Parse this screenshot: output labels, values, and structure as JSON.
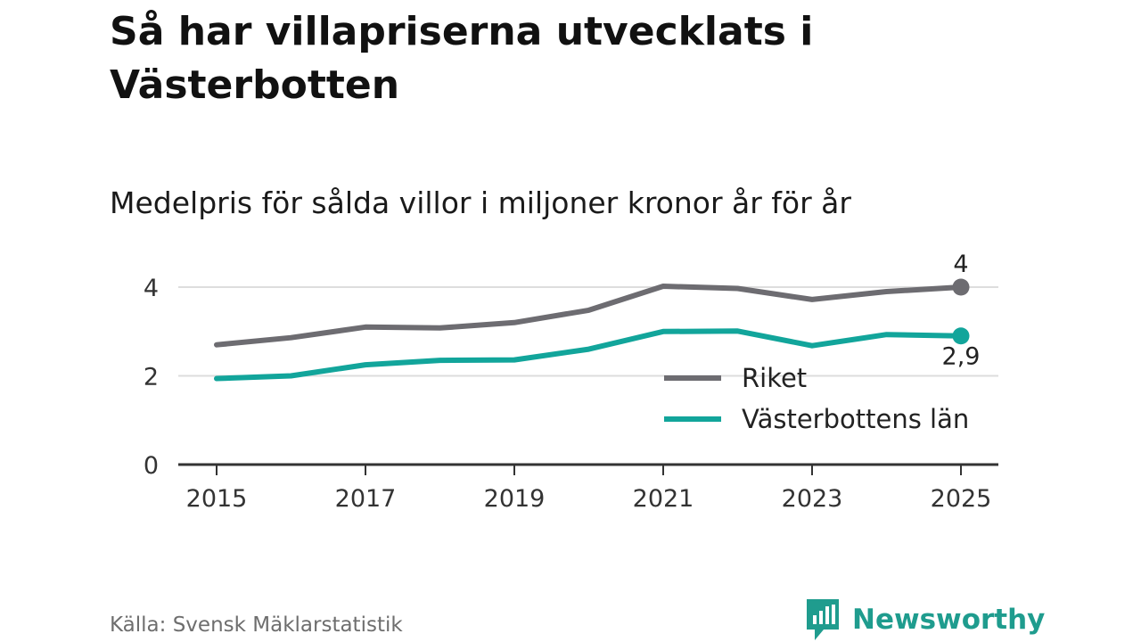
{
  "title": "Så har villapriserna utvecklats i Västerbotten",
  "subtitle": "Medelpris för sålda villor i miljoner kronor år för år",
  "source": "Källa: Svensk Mäklarstatistik",
  "brand": {
    "name": "Newsworthy",
    "icon": "newsworthy-logo-icon"
  },
  "colors": {
    "riket": "#6d6c71",
    "lan": "#12a59b",
    "grid": "#dddddd",
    "axis": "#333333",
    "brand": "#1f9c8e"
  },
  "chart_data": {
    "type": "line",
    "title": "Medelpris för sålda villor i miljoner kronor år för år",
    "xlabel": "",
    "ylabel": "",
    "x": [
      2015,
      2016,
      2017,
      2018,
      2019,
      2020,
      2021,
      2022,
      2023,
      2024,
      2025
    ],
    "xticks": [
      "2015",
      "2017",
      "2019",
      "2021",
      "2023",
      "2025"
    ],
    "yticks": [
      "0",
      "2",
      "4"
    ],
    "ylim": [
      0,
      4
    ],
    "grid": true,
    "legend_position": "bottom-right",
    "series": [
      {
        "name": "Riket",
        "color": "#6d6c71",
        "values": [
          2.7,
          2.86,
          3.1,
          3.08,
          3.2,
          3.48,
          4.02,
          3.97,
          3.72,
          3.9,
          4.0
        ],
        "end_label": "4"
      },
      {
        "name": "Västerbottens län",
        "color": "#12a59b",
        "values": [
          1.94,
          2.0,
          2.25,
          2.35,
          2.36,
          2.6,
          3.0,
          3.01,
          2.68,
          2.93,
          2.9
        ],
        "end_label": "2,9"
      }
    ]
  }
}
